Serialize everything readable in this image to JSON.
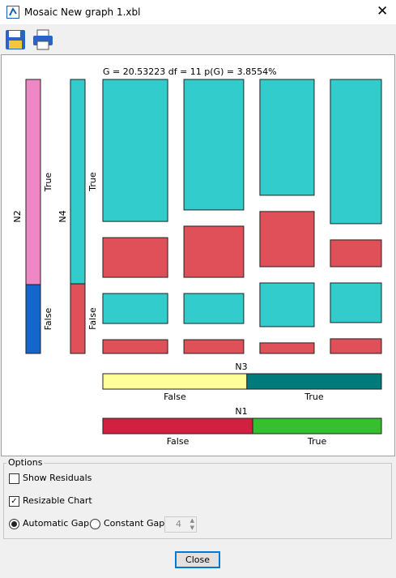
{
  "window": {
    "title": "Mosaic New graph 1.xbl"
  },
  "mosaic": {
    "stat": "G = 20.53223 df = 11 p(G) = 3.8554%",
    "columns": [
      {
        "width": 28.2,
        "cells": [
          63.0,
          17.6,
          13.3,
          6.1
        ]
      },
      {
        "width": 26.0,
        "cells": [
          57.9,
          22.7,
          13.3,
          6.1
        ]
      },
      {
        "width": 23.6,
        "cells": [
          51.4,
          24.5,
          19.4,
          4.7
        ]
      },
      {
        "width": 22.2,
        "cells": [
          64.0,
          11.9,
          17.6,
          6.5
        ]
      }
    ],
    "n2": {
      "name": "N2",
      "parts": [
        {
          "label": "True",
          "share": 74.9
        },
        {
          "label": "False",
          "share": 25.1
        }
      ]
    },
    "n4": {
      "name": "N4",
      "parts": [
        {
          "label": "True",
          "share": 74.6
        },
        {
          "label": "False",
          "share": 25.4
        }
      ]
    },
    "n3": {
      "name": "N3",
      "parts": [
        {
          "label": "False",
          "share": 51.7
        },
        {
          "label": "True",
          "share": 48.3
        }
      ]
    },
    "n1": {
      "name": "N1",
      "parts": [
        {
          "label": "False",
          "share": 53.8
        },
        {
          "label": "True",
          "share": 46.2
        }
      ]
    }
  },
  "options": {
    "title": "Options",
    "show_residuals": {
      "label": "Show Residuals",
      "checked": false
    },
    "resizable": {
      "label": "Resizable Chart",
      "checked": true
    },
    "automatic_gap": {
      "label": "Automatic Gap",
      "selected": true
    },
    "constant_gap": {
      "label": "Constant Gap",
      "selected": false
    },
    "gap_value": "4"
  },
  "close": "Close"
}
